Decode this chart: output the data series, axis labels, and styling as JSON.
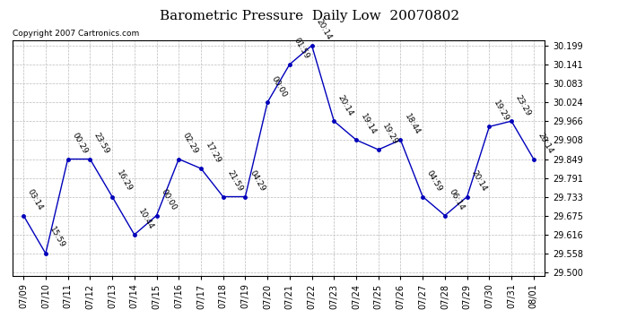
{
  "title": "Barometric Pressure  Daily Low  20070802",
  "copyright": "Copyright 2007 Cartronics.com",
  "x_labels": [
    "07/09",
    "07/10",
    "07/11",
    "07/12",
    "07/13",
    "07/14",
    "07/15",
    "07/16",
    "07/17",
    "07/18",
    "07/19",
    "07/20",
    "07/21",
    "07/22",
    "07/23",
    "07/24",
    "07/25",
    "07/26",
    "07/27",
    "07/28",
    "07/29",
    "07/30",
    "07/31",
    "08/01"
  ],
  "y_values": [
    29.675,
    29.558,
    29.849,
    29.849,
    29.733,
    29.616,
    29.675,
    29.849,
    29.82,
    29.733,
    29.733,
    30.024,
    30.141,
    30.199,
    29.966,
    29.908,
    29.878,
    29.908,
    29.733,
    29.675,
    29.733,
    29.949,
    29.966,
    29.849
  ],
  "point_labels": [
    "03:14",
    "15:59",
    "00:29",
    "23:59",
    "16:29",
    "10:44",
    "00:00",
    "02:29",
    "17:29",
    "21:59",
    "04:29",
    "00:00",
    "01:59",
    "20:14",
    "20:14",
    "19:14",
    "19:29",
    "18:44",
    "04:59",
    "06:14",
    "20:14",
    "19:29",
    "23:29",
    "20:14"
  ],
  "y_ticks": [
    29.5,
    29.558,
    29.616,
    29.675,
    29.733,
    29.791,
    29.849,
    29.908,
    29.966,
    30.024,
    30.083,
    30.141,
    30.199
  ],
  "ylim": [
    29.49,
    30.215
  ],
  "xlim": [
    -0.5,
    23.5
  ],
  "line_color": "#0000bb",
  "marker_color": "#0000bb",
  "background_color": "#ffffff",
  "grid_color": "#bbbbbb",
  "title_fontsize": 11,
  "tick_fontsize": 7,
  "point_label_fontsize": 6.5,
  "copyright_fontsize": 6.5
}
